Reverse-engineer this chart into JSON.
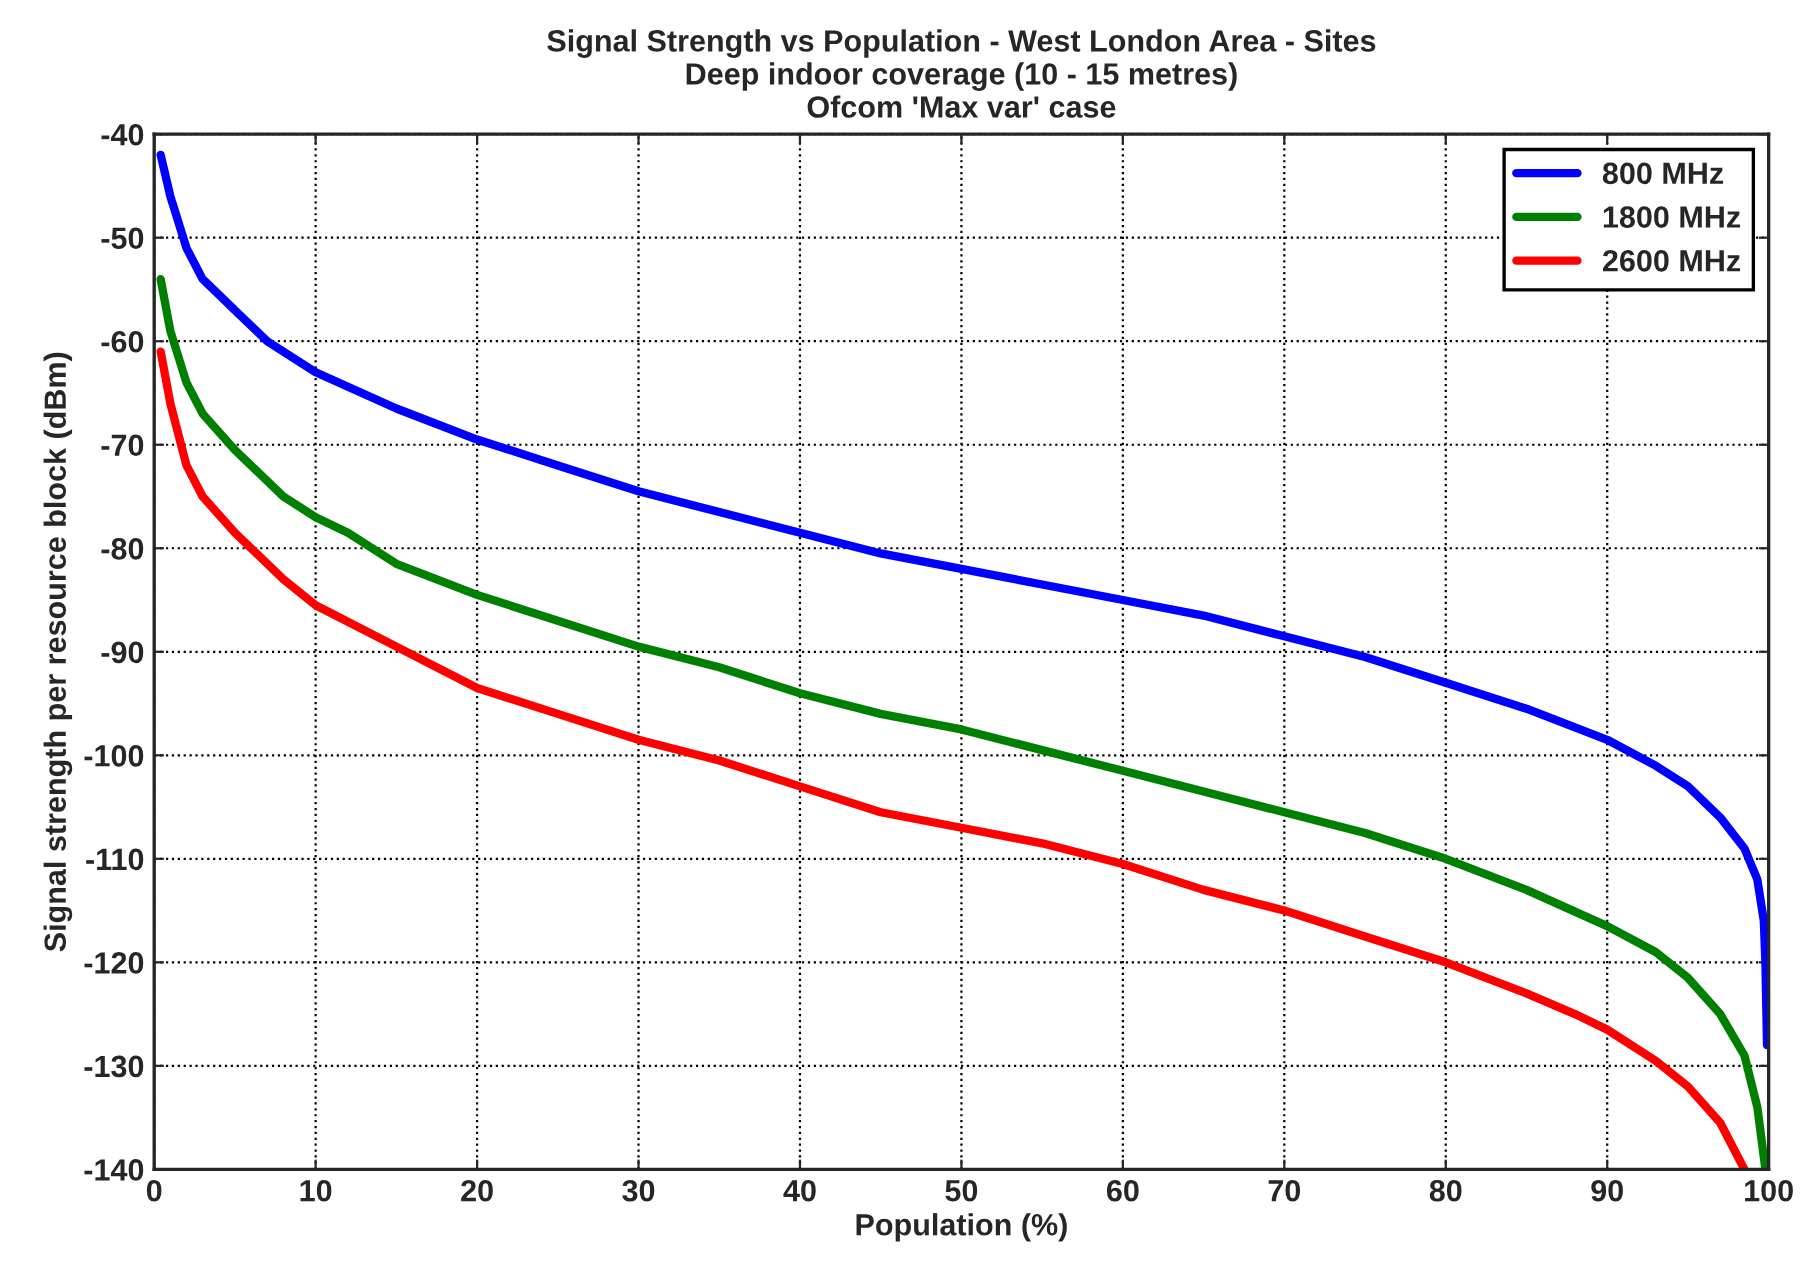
{
  "chart_data": {
    "type": "line",
    "title": "Signal Strength vs Population - West London Area - Sites\nDeep indoor coverage (10 - 15 metres)\nOfcom 'Max var' case",
    "xlabel": "Population (%)",
    "ylabel": "Signal strength per resource block (dBm)",
    "xlim": [
      0,
      100
    ],
    "xticks": [
      0,
      10,
      20,
      30,
      40,
      50,
      60,
      70,
      80,
      90,
      100
    ],
    "ylim": [
      -140,
      -40
    ],
    "yticks": [
      -140,
      -130,
      -120,
      -110,
      -100,
      -90,
      -80,
      -70,
      -60,
      -50,
      -40
    ],
    "grid": true,
    "legend": "top right",
    "line_style": "solid",
    "marker": "none",
    "series": [
      {
        "name": "800 MHz",
        "color": "#0000ff",
        "x": [
          0.4,
          1,
          2,
          3,
          5,
          7,
          10,
          15,
          20,
          25,
          30,
          35,
          40,
          45,
          50,
          55,
          60,
          65,
          70,
          75,
          80,
          85,
          90,
          93,
          95,
          97,
          98.5,
          99.3,
          99.7,
          99.8,
          99.9
        ],
        "values": [
          -42,
          -46,
          -51,
          -54,
          -57,
          -60,
          -63,
          -66.5,
          -69.5,
          -72,
          -74.5,
          -76.5,
          -78.5,
          -80.5,
          -82,
          -83.5,
          -85,
          -86.5,
          -88.5,
          -90.5,
          -93,
          -95.5,
          -98.5,
          -101,
          -103,
          -106,
          -109,
          -112,
          -116,
          -120,
          -128
        ]
      },
      {
        "name": "1800 MHz",
        "color": "#008000",
        "x": [
          0.4,
          1,
          2,
          3,
          5,
          8,
          10,
          12,
          15,
          20,
          25,
          30,
          35,
          40,
          45,
          50,
          55,
          60,
          65,
          70,
          75,
          80,
          85,
          90,
          93,
          95,
          97,
          98.5,
          99.3,
          99.8
        ],
        "values": [
          -54,
          -59,
          -64,
          -67,
          -70.5,
          -75,
          -77,
          -78.5,
          -81.5,
          -84.5,
          -87,
          -89.5,
          -91.5,
          -94,
          -96,
          -97.5,
          -99.5,
          -101.5,
          -103.5,
          -105.5,
          -107.5,
          -110,
          -113,
          -116.5,
          -119,
          -121.5,
          -125,
          -129,
          -134,
          -140
        ]
      },
      {
        "name": "2600 MHz",
        "color": "#ff0000",
        "x": [
          0.4,
          1,
          2,
          3,
          5,
          8,
          10,
          15,
          20,
          25,
          30,
          35,
          40,
          45,
          50,
          55,
          60,
          65,
          70,
          75,
          80,
          85,
          88,
          90,
          93,
          95,
          97,
          98.5
        ],
        "values": [
          -61,
          -66,
          -72,
          -75,
          -78.5,
          -83,
          -85.5,
          -89.5,
          -93.5,
          -96,
          -98.5,
          -100.5,
          -103,
          -105.5,
          -107,
          -108.5,
          -110.5,
          -113,
          -115,
          -117.5,
          -120,
          -123,
          -125,
          -126.5,
          -129.5,
          -132,
          -135.5,
          -140
        ]
      }
    ]
  }
}
